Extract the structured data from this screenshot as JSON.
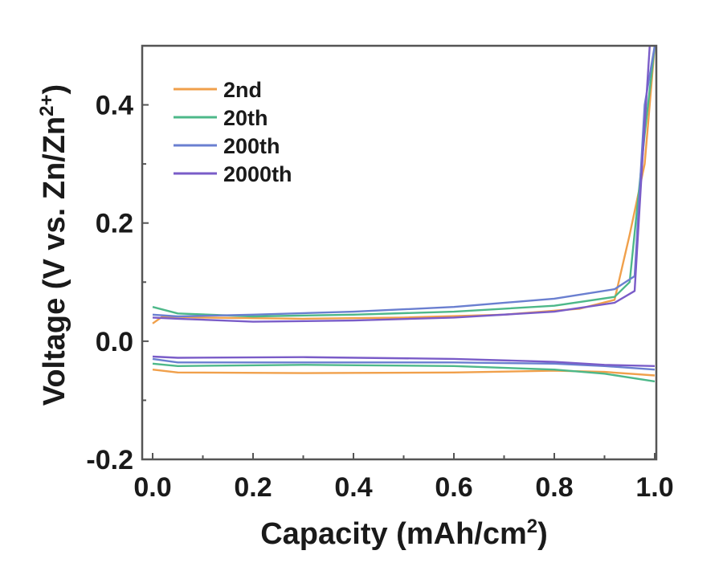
{
  "chart_data": {
    "type": "line",
    "title": "",
    "xlabel": "Capacity (mAh/cm",
    "xlabel_sup": "2",
    "xlabel_end": ")",
    "ylabel": "Voltage (V vs. Zn/Zn",
    "ylabel_sup": "2+",
    "ylabel_end": ")",
    "xlim": [
      0.0,
      1.0
    ],
    "ylim": [
      -0.2,
      0.5
    ],
    "xticks": [
      "0.0",
      "0.2",
      "0.4",
      "0.6",
      "0.8",
      "1.0"
    ],
    "yticks": [
      "-0.2",
      "0.0",
      "0.2",
      "0.4"
    ],
    "xtick_values": [
      0.0,
      0.2,
      0.4,
      0.6,
      0.8,
      1.0
    ],
    "ytick_values": [
      -0.2,
      0.0,
      0.2,
      0.4
    ],
    "grid": false,
    "legend_position": "top-left",
    "series": [
      {
        "name": "2nd",
        "color": "#f0a04b",
        "charge": {
          "x": [
            0.0,
            0.02,
            0.1,
            0.3,
            0.5,
            0.7,
            0.85,
            0.92,
            0.95,
            0.98,
            1.0
          ],
          "y": [
            0.03,
            0.042,
            0.04,
            0.038,
            0.04,
            0.045,
            0.055,
            0.07,
            0.18,
            0.3,
            0.5
          ]
        },
        "discharge": {
          "x": [
            0.0,
            0.05,
            0.3,
            0.6,
            0.8,
            0.9,
            1.0
          ],
          "y": [
            -0.048,
            -0.053,
            -0.054,
            -0.053,
            -0.05,
            -0.052,
            -0.058
          ]
        }
      },
      {
        "name": "20th",
        "color": "#4db889",
        "charge": {
          "x": [
            0.0,
            0.05,
            0.2,
            0.4,
            0.6,
            0.8,
            0.92,
            0.95,
            0.98,
            1.0
          ],
          "y": [
            0.058,
            0.047,
            0.042,
            0.045,
            0.05,
            0.06,
            0.075,
            0.1,
            0.35,
            0.5
          ]
        },
        "discharge": {
          "x": [
            0.0,
            0.05,
            0.3,
            0.6,
            0.8,
            0.9,
            1.0
          ],
          "y": [
            -0.038,
            -0.042,
            -0.04,
            -0.042,
            -0.048,
            -0.055,
            -0.068
          ]
        }
      },
      {
        "name": "200th",
        "color": "#6a7fd0",
        "charge": {
          "x": [
            0.0,
            0.05,
            0.2,
            0.4,
            0.6,
            0.8,
            0.92,
            0.96,
            0.98,
            1.0
          ],
          "y": [
            0.045,
            0.042,
            0.045,
            0.05,
            0.058,
            0.072,
            0.088,
            0.11,
            0.4,
            0.5
          ]
        },
        "discharge": {
          "x": [
            0.0,
            0.05,
            0.3,
            0.6,
            0.8,
            0.9,
            1.0
          ],
          "y": [
            -0.03,
            -0.036,
            -0.036,
            -0.036,
            -0.038,
            -0.042,
            -0.048
          ]
        }
      },
      {
        "name": "2000th",
        "color": "#7a5cc8",
        "charge": {
          "x": [
            0.0,
            0.05,
            0.2,
            0.4,
            0.6,
            0.8,
            0.92,
            0.96,
            0.975,
            0.99
          ],
          "y": [
            0.04,
            0.038,
            0.033,
            0.035,
            0.04,
            0.05,
            0.065,
            0.085,
            0.3,
            0.5
          ]
        },
        "discharge": {
          "x": [
            0.0,
            0.05,
            0.3,
            0.6,
            0.8,
            0.9,
            1.0
          ],
          "y": [
            -0.026,
            -0.028,
            -0.027,
            -0.03,
            -0.035,
            -0.04,
            -0.042
          ]
        }
      }
    ]
  }
}
